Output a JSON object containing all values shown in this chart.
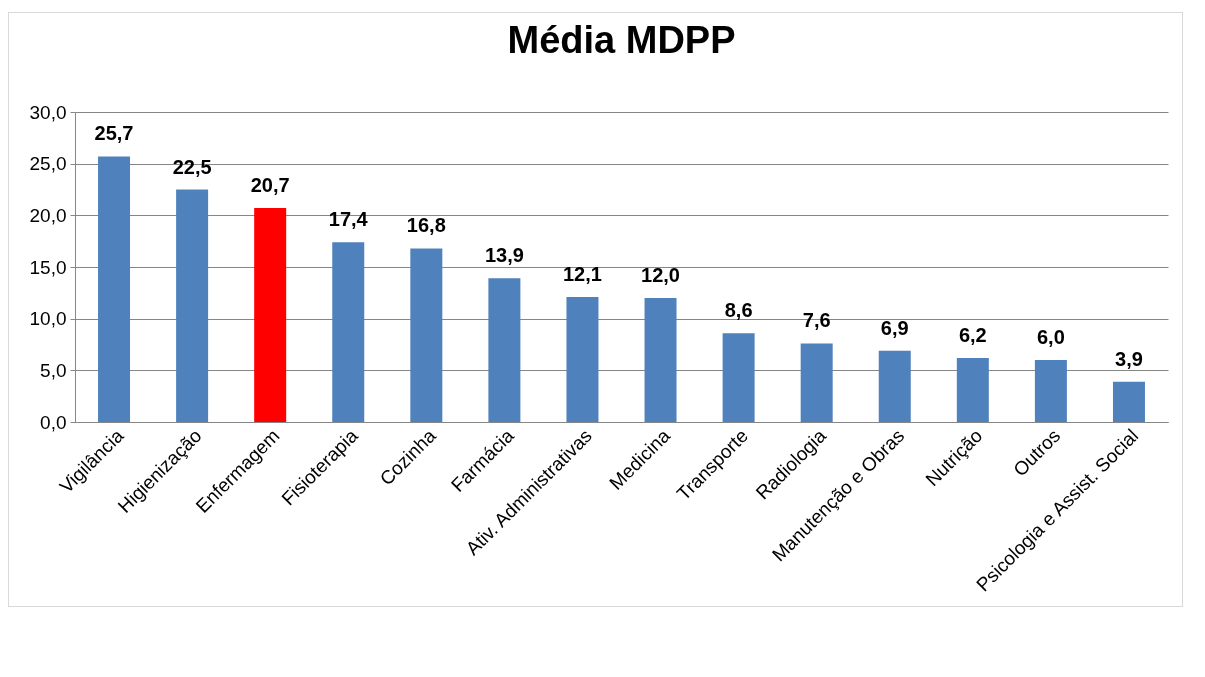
{
  "chart_data": {
    "type": "bar",
    "title": "Média MDPP",
    "categories": [
      "Vigilância",
      "Higienização",
      "Enfermagem",
      "Fisioterapia",
      "Cozinha",
      "Farmácia",
      "Ativ. Administrativas",
      "Medicina",
      "Transporte",
      "Radiologia",
      "Manutenção e Obras",
      "Nutrição",
      "Outros",
      "Psicologia e Assist. Social"
    ],
    "values": [
      25.7,
      22.5,
      20.7,
      17.4,
      16.8,
      13.9,
      12.1,
      12.0,
      8.6,
      7.6,
      6.9,
      6.2,
      6.0,
      3.9
    ],
    "colors": [
      "#4f81bd",
      "#4f81bd",
      "#ff0000",
      "#4f81bd",
      "#4f81bd",
      "#4f81bd",
      "#4f81bd",
      "#4f81bd",
      "#4f81bd",
      "#4f81bd",
      "#4f81bd",
      "#4f81bd",
      "#4f81bd",
      "#4f81bd"
    ],
    "value_labels": [
      "25,7",
      "22,5",
      "20,7",
      "17,4",
      "16,8",
      "13,9",
      "12,1",
      "12,0",
      "8,6",
      "7,6",
      "6,9",
      "6,2",
      "6,0",
      "3,9"
    ],
    "ylim": [
      0,
      30
    ],
    "yticks": [
      {
        "value": 0,
        "label": "0,0"
      },
      {
        "value": 5,
        "label": "5,0"
      },
      {
        "value": 10,
        "label": "10,0"
      },
      {
        "value": 15,
        "label": "15,0"
      },
      {
        "value": 20,
        "label": "20,0"
      },
      {
        "value": 25,
        "label": "25,0"
      },
      {
        "value": 30,
        "label": "30,0"
      }
    ],
    "grid": "y"
  }
}
